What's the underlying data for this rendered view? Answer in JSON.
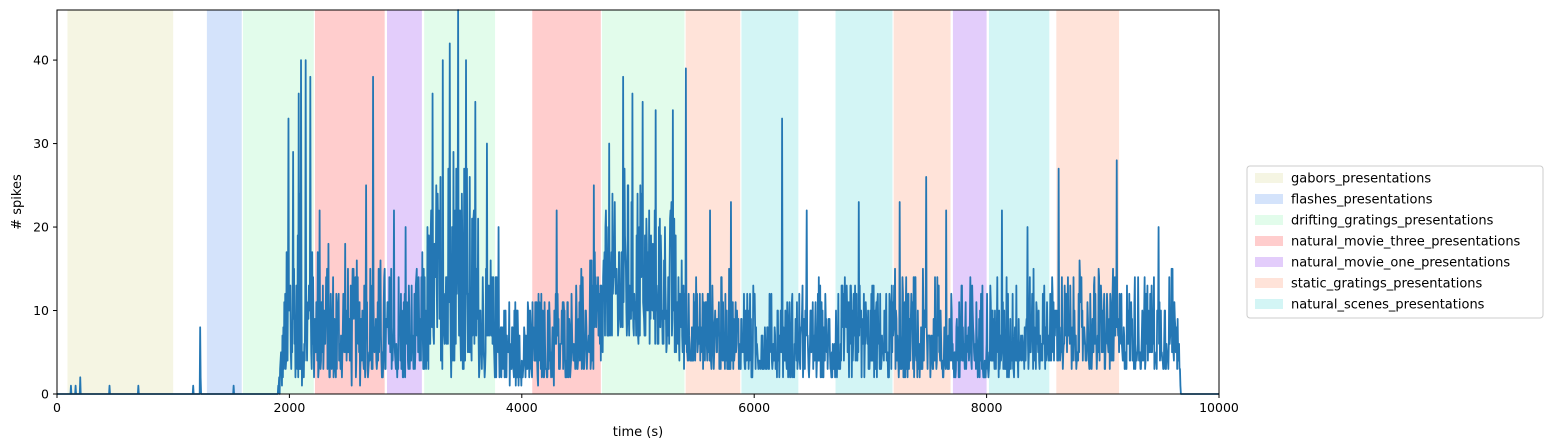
{
  "chart_data": {
    "type": "line",
    "title": "",
    "xlabel": "time (s)",
    "ylabel": "# spikes",
    "xlim": [
      0,
      10000
    ],
    "ylim": [
      0,
      46
    ],
    "xticks": [
      0,
      2000,
      4000,
      6000,
      8000,
      10000
    ],
    "yticks": [
      0,
      10,
      20,
      30,
      40
    ],
    "grid": false,
    "legend_position": "right-outside",
    "line_color": "#2477b4",
    "stimulus_types": [
      {
        "name": "gabors_presentations",
        "color": "#f5f5e3"
      },
      {
        "name": "flashes_presentations",
        "color": "#d4e3fb"
      },
      {
        "name": "drifting_gratings_presentations",
        "color": "#e2fceb"
      },
      {
        "name": "natural_movie_three_presentations",
        "color": "#ffcdcd"
      },
      {
        "name": "natural_movie_one_presentations",
        "color": "#e3cdfb"
      },
      {
        "name": "static_gratings_presentations",
        "color": "#ffe3d9"
      },
      {
        "name": "natural_scenes_presentations",
        "color": "#d3f5f5"
      }
    ],
    "epochs": [
      {
        "stimulus": "gabors_presentations",
        "start": 90,
        "end": 1000
      },
      {
        "stimulus": "flashes_presentations",
        "start": 1290,
        "end": 1590
      },
      {
        "stimulus": "drifting_gratings_presentations",
        "start": 1600,
        "end": 2210
      },
      {
        "stimulus": "natural_movie_three_presentations",
        "start": 2220,
        "end": 2820
      },
      {
        "stimulus": "natural_movie_one_presentations",
        "start": 2840,
        "end": 3140
      },
      {
        "stimulus": "drifting_gratings_presentations",
        "start": 3160,
        "end": 3770
      },
      {
        "stimulus": "natural_movie_three_presentations",
        "start": 4090,
        "end": 4680
      },
      {
        "stimulus": "drifting_gratings_presentations",
        "start": 4690,
        "end": 5400
      },
      {
        "stimulus": "static_gratings_presentations",
        "start": 5410,
        "end": 5880
      },
      {
        "stimulus": "natural_scenes_presentations",
        "start": 5890,
        "end": 6380
      },
      {
        "stimulus": "natural_scenes_presentations",
        "start": 6700,
        "end": 7190
      },
      {
        "stimulus": "static_gratings_presentations",
        "start": 7200,
        "end": 7690
      },
      {
        "stimulus": "natural_movie_one_presentations",
        "start": 7710,
        "end": 8000
      },
      {
        "stimulus": "natural_scenes_presentations",
        "start": 8020,
        "end": 8540
      },
      {
        "stimulus": "static_gratings_presentations",
        "start": 8600,
        "end": 9140
      }
    ],
    "spike_profile": {
      "x": [
        0,
        1900,
        1950,
        2000,
        2100,
        2200,
        2400,
        2800,
        3100,
        3150,
        3300,
        3450,
        3600,
        3750,
        3900,
        4100,
        4400,
        4650,
        4700,
        4800,
        5000,
        5300,
        5420,
        5600,
        6000,
        6500,
        7000,
        7500,
        8000,
        8500,
        9000,
        9400,
        9660,
        9670,
        10000
      ],
      "baseline": [
        0,
        0,
        3,
        4,
        5,
        5,
        4,
        4,
        4,
        5,
        7,
        8,
        6,
        4,
        3,
        3,
        4,
        5,
        7,
        9,
        10,
        8,
        5,
        5,
        4,
        4,
        4,
        4,
        4,
        5,
        5,
        5,
        5,
        0,
        0
      ],
      "amplitude": [
        0,
        0,
        10,
        18,
        20,
        14,
        13,
        12,
        11,
        14,
        22,
        26,
        18,
        12,
        9,
        9,
        10,
        12,
        15,
        16,
        18,
        15,
        10,
        10,
        9,
        9,
        10,
        10,
        10,
        10,
        10,
        10,
        10,
        0,
        0
      ]
    },
    "peaks": [
      {
        "x": 120,
        "y": 1
      },
      {
        "x": 160,
        "y": 1
      },
      {
        "x": 200,
        "y": 2
      },
      {
        "x": 450,
        "y": 1
      },
      {
        "x": 700,
        "y": 1
      },
      {
        "x": 1170,
        "y": 1
      },
      {
        "x": 1230,
        "y": 8
      },
      {
        "x": 1520,
        "y": 1
      },
      {
        "x": 1990,
        "y": 33
      },
      {
        "x": 2030,
        "y": 29
      },
      {
        "x": 2080,
        "y": 36
      },
      {
        "x": 2100,
        "y": 40
      },
      {
        "x": 2140,
        "y": 40
      },
      {
        "x": 2180,
        "y": 38
      },
      {
        "x": 2260,
        "y": 22
      },
      {
        "x": 2480,
        "y": 18
      },
      {
        "x": 2660,
        "y": 25
      },
      {
        "x": 2720,
        "y": 38
      },
      {
        "x": 2900,
        "y": 22
      },
      {
        "x": 3000,
        "y": 20
      },
      {
        "x": 3230,
        "y": 36
      },
      {
        "x": 3320,
        "y": 40
      },
      {
        "x": 3380,
        "y": 42
      },
      {
        "x": 3450,
        "y": 46
      },
      {
        "x": 3520,
        "y": 40
      },
      {
        "x": 3600,
        "y": 35
      },
      {
        "x": 3700,
        "y": 30
      },
      {
        "x": 3800,
        "y": 20
      },
      {
        "x": 4300,
        "y": 22
      },
      {
        "x": 4620,
        "y": 25
      },
      {
        "x": 4750,
        "y": 30
      },
      {
        "x": 4870,
        "y": 38
      },
      {
        "x": 4950,
        "y": 36
      },
      {
        "x": 5040,
        "y": 35
      },
      {
        "x": 5150,
        "y": 34
      },
      {
        "x": 5300,
        "y": 34
      },
      {
        "x": 5410,
        "y": 39
      },
      {
        "x": 5620,
        "y": 22
      },
      {
        "x": 5800,
        "y": 23
      },
      {
        "x": 6240,
        "y": 33
      },
      {
        "x": 6450,
        "y": 22
      },
      {
        "x": 6900,
        "y": 23
      },
      {
        "x": 7250,
        "y": 23
      },
      {
        "x": 7480,
        "y": 26
      },
      {
        "x": 7650,
        "y": 22
      },
      {
        "x": 8130,
        "y": 22
      },
      {
        "x": 8350,
        "y": 20
      },
      {
        "x": 8620,
        "y": 27
      },
      {
        "x": 9120,
        "y": 28
      },
      {
        "x": 9480,
        "y": 20
      },
      {
        "x": 9600,
        "y": 15
      }
    ]
  }
}
